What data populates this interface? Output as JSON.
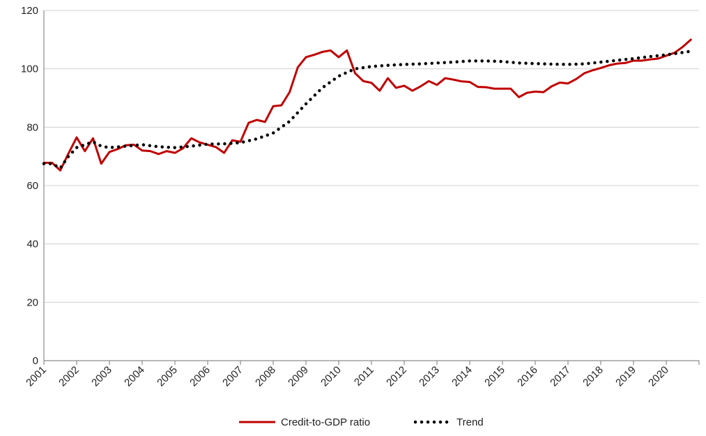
{
  "chart_data": {
    "type": "line",
    "title": "",
    "xlabel": "",
    "ylabel": "",
    "ylim": [
      0,
      120
    ],
    "yticks": [
      "0",
      "20",
      "40",
      "60",
      "80",
      "100",
      "120"
    ],
    "xlim": [
      2001,
      2021
    ],
    "xticks": [
      "2001",
      "2002",
      "2003",
      "2004",
      "2005",
      "2006",
      "2007",
      "2008",
      "2009",
      "2010",
      "2011",
      "2012",
      "2013",
      "2014",
      "2015",
      "2016",
      "2017",
      "2018",
      "2019",
      "2020"
    ],
    "grid": true,
    "legend_position": "bottom-center",
    "series": [
      {
        "name": "Credit-to-GDP ratio",
        "color": "#c00000",
        "style": "solid",
        "points": [
          [
            2001.0,
            67.8
          ],
          [
            2001.25,
            67.8
          ],
          [
            2001.5,
            65.2
          ],
          [
            2001.75,
            71.0
          ],
          [
            2002.0,
            76.5
          ],
          [
            2002.25,
            71.8
          ],
          [
            2002.5,
            76.2
          ],
          [
            2002.75,
            67.5
          ],
          [
            2003.0,
            71.5
          ],
          [
            2003.25,
            72.5
          ],
          [
            2003.5,
            73.8
          ],
          [
            2003.75,
            74.0
          ],
          [
            2004.0,
            72.0
          ],
          [
            2004.25,
            71.8
          ],
          [
            2004.5,
            70.8
          ],
          [
            2004.75,
            71.8
          ],
          [
            2005.0,
            71.2
          ],
          [
            2005.25,
            72.8
          ],
          [
            2005.5,
            76.2
          ],
          [
            2005.75,
            74.8
          ],
          [
            2006.0,
            74.0
          ],
          [
            2006.25,
            73.2
          ],
          [
            2006.5,
            71.2
          ],
          [
            2006.75,
            75.5
          ],
          [
            2007.0,
            75.0
          ],
          [
            2007.25,
            81.5
          ],
          [
            2007.5,
            82.5
          ],
          [
            2007.75,
            81.8
          ],
          [
            2008.0,
            87.2
          ],
          [
            2008.25,
            87.5
          ],
          [
            2008.5,
            92.0
          ],
          [
            2008.75,
            100.5
          ],
          [
            2009.0,
            104.0
          ],
          [
            2009.25,
            104.8
          ],
          [
            2009.5,
            105.8
          ],
          [
            2009.75,
            106.3
          ],
          [
            2010.0,
            104.0
          ],
          [
            2010.25,
            106.3
          ],
          [
            2010.5,
            98.5
          ],
          [
            2010.75,
            95.8
          ],
          [
            2011.0,
            95.2
          ],
          [
            2011.25,
            92.5
          ],
          [
            2011.5,
            96.8
          ],
          [
            2011.75,
            93.5
          ],
          [
            2012.0,
            94.2
          ],
          [
            2012.25,
            92.5
          ],
          [
            2012.5,
            94.0
          ],
          [
            2012.75,
            95.8
          ],
          [
            2013.0,
            94.5
          ],
          [
            2013.25,
            96.8
          ],
          [
            2013.5,
            96.3
          ],
          [
            2013.75,
            95.7
          ],
          [
            2014.0,
            95.5
          ],
          [
            2014.25,
            93.8
          ],
          [
            2014.5,
            93.7
          ],
          [
            2014.75,
            93.2
          ],
          [
            2015.0,
            93.2
          ],
          [
            2015.25,
            93.2
          ],
          [
            2015.5,
            90.3
          ],
          [
            2015.75,
            91.8
          ],
          [
            2016.0,
            92.2
          ],
          [
            2016.25,
            92.0
          ],
          [
            2016.5,
            94.0
          ],
          [
            2016.75,
            95.3
          ],
          [
            2017.0,
            95.0
          ],
          [
            2017.25,
            96.5
          ],
          [
            2017.5,
            98.5
          ],
          [
            2017.75,
            99.5
          ],
          [
            2018.0,
            100.3
          ],
          [
            2018.25,
            101.2
          ],
          [
            2018.5,
            101.8
          ],
          [
            2018.75,
            102.0
          ],
          [
            2019.0,
            102.8
          ],
          [
            2019.25,
            102.8
          ],
          [
            2019.5,
            103.2
          ],
          [
            2019.75,
            103.5
          ],
          [
            2020.0,
            104.5
          ],
          [
            2020.25,
            105.5
          ],
          [
            2020.5,
            107.5
          ],
          [
            2020.75,
            110.0
          ]
        ]
      },
      {
        "name": "Trend",
        "color": "#000000",
        "style": "dotted",
        "points": [
          [
            2001.0,
            67.5
          ],
          [
            2001.25,
            67.5
          ],
          [
            2001.5,
            66.0
          ],
          [
            2001.75,
            70.0
          ],
          [
            2002.0,
            73.0
          ],
          [
            2002.25,
            74.0
          ],
          [
            2002.5,
            75.0
          ],
          [
            2002.75,
            73.5
          ],
          [
            2003.0,
            73.0
          ],
          [
            2003.5,
            73.5
          ],
          [
            2004.0,
            74.0
          ],
          [
            2004.5,
            73.3
          ],
          [
            2005.0,
            73.0
          ],
          [
            2005.5,
            73.5
          ],
          [
            2006.0,
            74.2
          ],
          [
            2006.5,
            74.3
          ],
          [
            2007.0,
            74.7
          ],
          [
            2007.5,
            76.0
          ],
          [
            2008.0,
            78.0
          ],
          [
            2008.5,
            82.0
          ],
          [
            2009.0,
            88.0
          ],
          [
            2009.5,
            93.5
          ],
          [
            2010.0,
            97.5
          ],
          [
            2010.5,
            100.0
          ],
          [
            2011.0,
            100.8
          ],
          [
            2011.5,
            101.2
          ],
          [
            2012.0,
            101.5
          ],
          [
            2012.5,
            101.7
          ],
          [
            2013.0,
            102.0
          ],
          [
            2013.5,
            102.3
          ],
          [
            2014.0,
            102.7
          ],
          [
            2014.5,
            102.7
          ],
          [
            2015.0,
            102.5
          ],
          [
            2015.5,
            102.0
          ],
          [
            2016.0,
            101.8
          ],
          [
            2016.5,
            101.6
          ],
          [
            2017.0,
            101.5
          ],
          [
            2017.5,
            101.7
          ],
          [
            2018.0,
            102.3
          ],
          [
            2018.5,
            102.9
          ],
          [
            2019.0,
            103.5
          ],
          [
            2019.5,
            104.2
          ],
          [
            2020.0,
            104.8
          ],
          [
            2020.5,
            105.6
          ],
          [
            2020.85,
            106.2
          ]
        ]
      }
    ]
  }
}
